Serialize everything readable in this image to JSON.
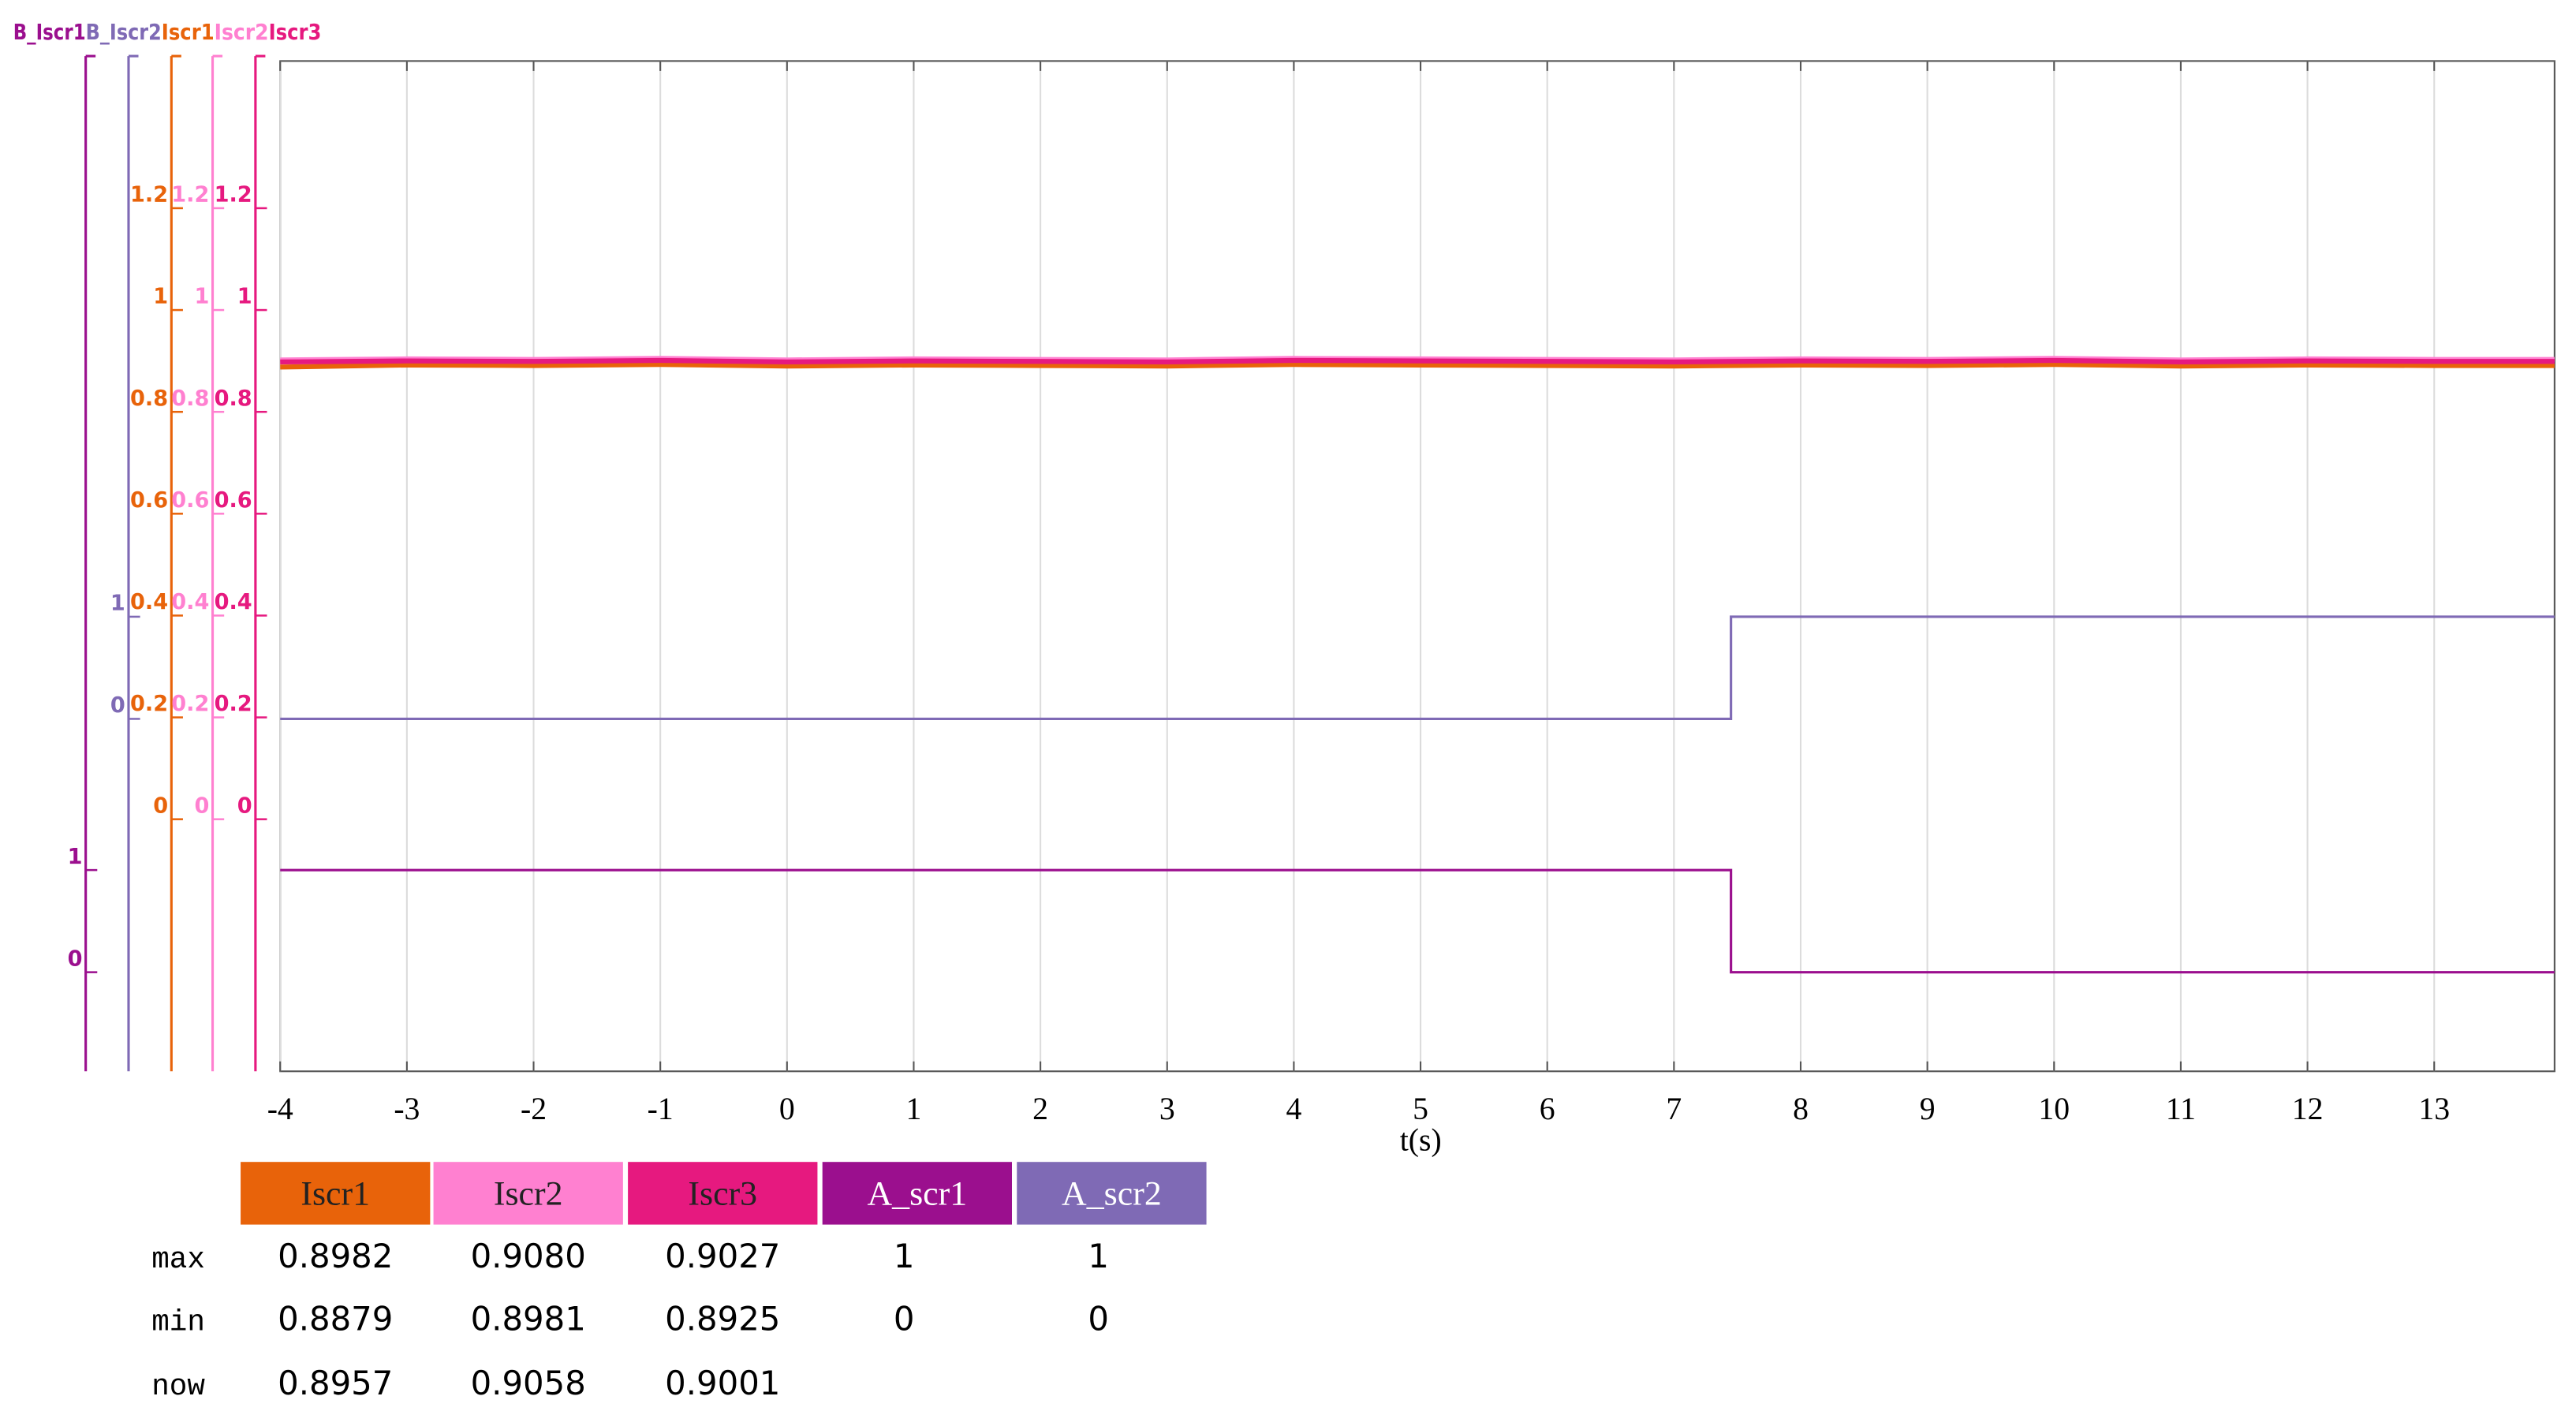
{
  "chart_data": {
    "type": "line",
    "xlabel": "t(s)",
    "xlim": [
      -4,
      13.95
    ],
    "xticks": [
      -4,
      -3,
      -2,
      -1,
      0,
      1,
      2,
      3,
      4,
      5,
      6,
      7,
      8,
      9,
      10,
      11,
      12,
      13
    ],
    "grid": true,
    "axes": [
      {
        "label": "B_Iscr1",
        "color": "#9b0f8e",
        "ylim": [
          -0.97,
          8.92
        ],
        "yticks": [
          0,
          1
        ]
      },
      {
        "label": "B_Iscr2",
        "color": "#7f6ab5",
        "ylim": [
          -3.45,
          6.44
        ],
        "yticks": [
          0,
          1
        ]
      },
      {
        "label": "Iscr1",
        "color": "#e8630a",
        "ylim": [
          -0.495,
          1.489
        ],
        "yticks": [
          0,
          0.2,
          0.4,
          0.6,
          0.8,
          1,
          1.2
        ]
      },
      {
        "label": "Iscr2",
        "color": "#ff80d0",
        "ylim": [
          -0.495,
          1.489
        ],
        "yticks": [
          0,
          0.2,
          0.4,
          0.6,
          0.8,
          1,
          1.2
        ]
      },
      {
        "label": "Iscr3",
        "color": "#e6197f",
        "ylim": [
          -0.495,
          1.489
        ],
        "yticks": [
          0,
          0.2,
          0.4,
          0.6,
          0.8,
          1,
          1.2
        ]
      }
    ],
    "series": [
      {
        "name": "Iscr1",
        "color": "#e8630a",
        "axis": 2,
        "x": [
          -4,
          -3,
          -2,
          -1,
          0,
          1,
          2,
          3,
          4,
          5,
          6,
          7,
          8,
          9,
          10,
          11,
          12,
          13,
          13.95
        ],
        "values": [
          0.888,
          0.892,
          0.891,
          0.893,
          0.89,
          0.892,
          0.891,
          0.89,
          0.893,
          0.892,
          0.891,
          0.89,
          0.892,
          0.891,
          0.893,
          0.89,
          0.892,
          0.891,
          0.891
        ]
      },
      {
        "name": "Iscr2",
        "color": "#ff80d0",
        "axis": 3,
        "x": [
          -4,
          -3,
          -2,
          -1,
          0,
          1,
          2,
          3,
          4,
          5,
          6,
          7,
          8,
          9,
          10,
          11,
          12,
          13,
          13.95
        ],
        "values": [
          0.902,
          0.904,
          0.903,
          0.905,
          0.902,
          0.904,
          0.903,
          0.902,
          0.905,
          0.904,
          0.903,
          0.902,
          0.904,
          0.903,
          0.905,
          0.902,
          0.904,
          0.903,
          0.903
        ]
      },
      {
        "name": "Iscr3",
        "color": "#e6197f",
        "axis": 4,
        "x": [
          -4,
          -3,
          -2,
          -1,
          0,
          1,
          2,
          3,
          4,
          5,
          6,
          7,
          8,
          9,
          10,
          11,
          12,
          13,
          13.95
        ],
        "values": [
          0.898,
          0.9,
          0.899,
          0.901,
          0.898,
          0.9,
          0.899,
          0.898,
          0.901,
          0.9,
          0.899,
          0.898,
          0.9,
          0.899,
          0.901,
          0.898,
          0.9,
          0.899,
          0.899
        ]
      },
      {
        "name": "A_scr1",
        "color": "#9b0f8e",
        "axis": 0,
        "x": [
          -4,
          7.45,
          7.45,
          13.95
        ],
        "values": [
          1,
          1,
          0,
          0
        ]
      },
      {
        "name": "A_scr2",
        "color": "#7f6ab5",
        "axis": 1,
        "x": [
          -4,
          7.45,
          7.45,
          13.95
        ],
        "values": [
          0,
          0,
          1,
          1
        ]
      }
    ]
  },
  "table": {
    "rows": [
      {
        "label": "max",
        "values": [
          "0.8982",
          "0.9080",
          "0.9027",
          "1",
          "1"
        ]
      },
      {
        "label": "min",
        "values": [
          "0.8879",
          "0.8981",
          "0.8925",
          "0",
          "0"
        ]
      },
      {
        "label": "now",
        "values": [
          "0.8957",
          "0.9058",
          "0.9001"
        ]
      }
    ]
  }
}
